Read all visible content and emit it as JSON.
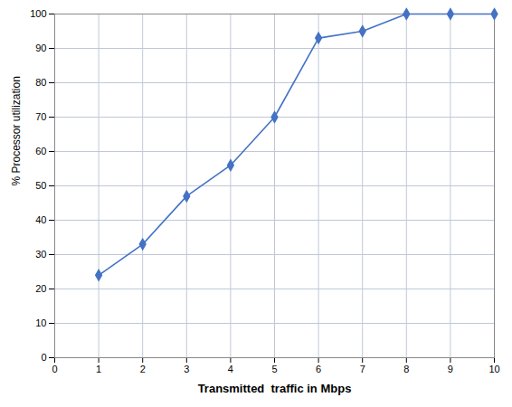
{
  "chart_data": {
    "type": "line",
    "x": [
      1,
      2,
      3,
      4,
      5,
      6,
      7,
      8,
      9,
      10
    ],
    "values": [
      24,
      33,
      47,
      56,
      70,
      93,
      95,
      100,
      100,
      100
    ],
    "color": "#4472C4",
    "marker": "diamond",
    "xlabel": "Transmitted  traffic in Mbps",
    "ylabel": "% Processor utilization",
    "xlim": [
      0,
      10
    ],
    "ylim": [
      0,
      100
    ],
    "xticks": [
      0,
      1,
      2,
      3,
      4,
      5,
      6,
      7,
      8,
      9,
      10
    ],
    "yticks": [
      0,
      10,
      20,
      30,
      40,
      50,
      60,
      70,
      80,
      90,
      100
    ],
    "grid": true
  }
}
